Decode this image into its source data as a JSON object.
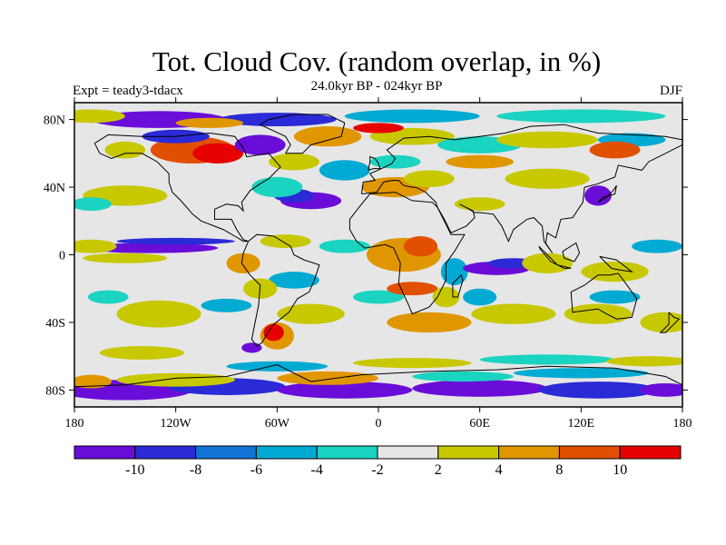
{
  "title": "Tot. Cloud Cov. (random overlap, in %)",
  "subtitle": "24.0kyr BP - 024kyr BP",
  "left_label": "Expt = teady3-tdacx",
  "right_label": "DJF",
  "lat_ticks": [
    {
      "label": "80N",
      "lat": 80
    },
    {
      "label": "40N",
      "lat": 40
    },
    {
      "label": "0",
      "lat": 0
    },
    {
      "label": "40S",
      "lat": -40
    },
    {
      "label": "80S",
      "lat": -80
    }
  ],
  "lon_ticks": [
    {
      "label": "180",
      "lon": -180
    },
    {
      "label": "120W",
      "lon": -120
    },
    {
      "label": "60W",
      "lon": -60
    },
    {
      "label": "0",
      "lon": 0
    },
    {
      "label": "60E",
      "lon": 60
    },
    {
      "label": "120E",
      "lon": 120
    },
    {
      "label": "180",
      "lon": 180
    }
  ],
  "colorbar": {
    "colors": [
      "#6a0dd8",
      "#2a2ad6",
      "#1473d6",
      "#00aad2",
      "#1ad3c0",
      "#e6e6e6",
      "#c8c800",
      "#e09600",
      "#e05000",
      "#e60000"
    ],
    "labels": [
      "-10",
      "-8",
      "-6",
      "-4",
      "-2",
      "2",
      "4",
      "8",
      "10"
    ]
  },
  "colors": {
    "background_field": "#e6e6e6",
    "coastline": "#000000"
  }
}
